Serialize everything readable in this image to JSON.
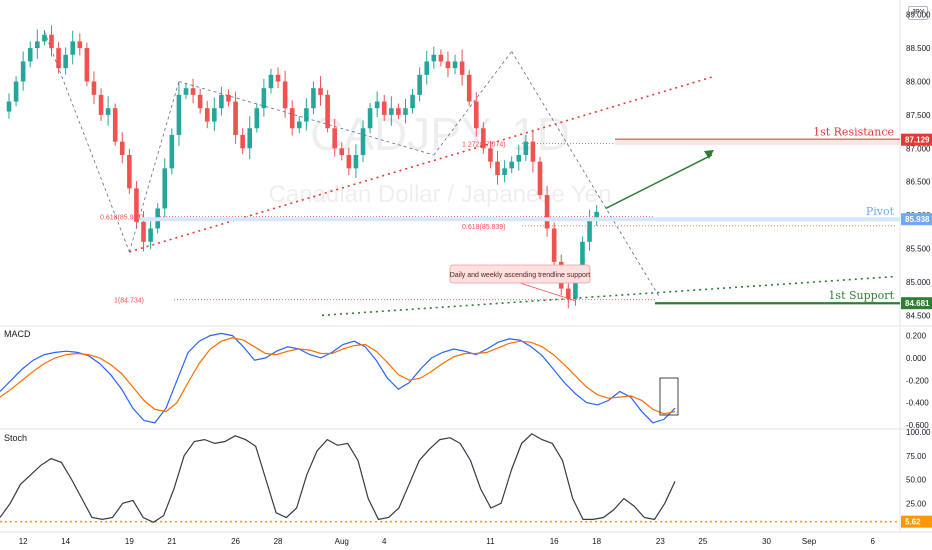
{
  "currency_badge": "JPY",
  "watermark": {
    "symbol": "CADJPY, 1D",
    "name": "Canadian Dollar / Japanese Yen"
  },
  "chart_data": [
    {
      "type": "candlestick",
      "ylim": [
        84.4,
        89.1
      ],
      "y_ticks": [
        "89.000",
        "88.500",
        "88.000",
        "87.500",
        "87.000",
        "86.500",
        "86.000",
        "85.500",
        "85.000",
        "84.500"
      ],
      "x_ticks": [
        {
          "label": "12",
          "i": 2
        },
        {
          "label": "14",
          "i": 8
        },
        {
          "label": "19",
          "i": 17
        },
        {
          "label": "21",
          "i": 23
        },
        {
          "label": "26",
          "i": 32
        },
        {
          "label": "28",
          "i": 38
        },
        {
          "label": "Aug",
          "i": 47
        },
        {
          "label": "4",
          "i": 53
        },
        {
          "label": "11",
          "i": 68
        },
        {
          "label": "16",
          "i": 77
        },
        {
          "label": "18",
          "i": 83
        },
        {
          "label": "23",
          "i": 92
        },
        {
          "label": "25",
          "i": 98
        },
        {
          "label": "30",
          "i": 107
        },
        {
          "label": "Sep",
          "i": 113
        },
        {
          "label": "6",
          "i": 122
        }
      ],
      "closes": [
        87.7,
        88.0,
        88.3,
        88.5,
        88.6,
        88.7,
        88.5,
        88.2,
        88.4,
        88.6,
        88.5,
        88.0,
        87.8,
        87.5,
        87.6,
        87.1,
        86.9,
        86.4,
        85.9,
        85.6,
        85.8,
        86.1,
        86.7,
        87.2,
        87.8,
        87.9,
        87.8,
        87.6,
        87.4,
        87.6,
        87.8,
        87.7,
        87.2,
        87.0,
        87.3,
        87.6,
        87.9,
        88.1,
        88.0,
        87.6,
        87.3,
        87.4,
        87.6,
        87.9,
        87.8,
        87.3,
        87.0,
        86.9,
        86.7,
        86.9,
        87.3,
        87.6,
        87.7,
        87.5,
        87.6,
        87.5,
        87.6,
        87.8,
        88.1,
        88.3,
        88.4,
        88.3,
        88.2,
        88.3,
        88.1,
        87.7,
        87.3,
        87.0,
        86.8,
        86.6,
        86.7,
        86.8,
        86.9,
        87.1,
        86.8,
        86.3,
        85.8,
        85.3,
        84.9,
        84.75,
        85.1,
        85.6,
        85.93,
        86.05
      ],
      "levels": [
        {
          "label": "1st Resistance",
          "value": 87.129,
          "tag": "87.129",
          "color": "#e53935"
        },
        {
          "label": "Pivot",
          "value": 85.938,
          "tag": "85.938",
          "color": "#6fa8f5"
        },
        {
          "label": "1st Support",
          "value": 84.681,
          "tag": "84.681",
          "color": "#2e7d32"
        }
      ],
      "fib_labels": [
        {
          "text": "0.618(85.981)",
          "value": 85.981
        },
        {
          "text": "1.272(87.074)",
          "value": 87.074
        },
        {
          "text": "0.618(85.839)",
          "value": 85.839
        },
        {
          "text": "1(84.734)",
          "value": 84.734
        }
      ],
      "annotation": "Daily and weekly ascending trendline support"
    },
    {
      "type": "line",
      "title": "MACD",
      "ylim": [
        -0.6,
        0.25
      ],
      "y_ticks": [
        "0.200",
        "0.000",
        "-0.200",
        "-0.400",
        "-0.600"
      ],
      "series": [
        {
          "color": "#2962ff",
          "values": [
            -0.3,
            -0.2,
            -0.1,
            -0.02,
            0.03,
            0.05,
            0.06,
            0.05,
            0.02,
            -0.05,
            -0.15,
            -0.28,
            -0.45,
            -0.56,
            -0.58,
            -0.45,
            -0.2,
            0.05,
            0.15,
            0.2,
            0.22,
            0.2,
            0.1,
            -0.02,
            0.0,
            0.06,
            0.1,
            0.08,
            0.03,
            0.0,
            0.05,
            0.12,
            0.15,
            0.1,
            -0.02,
            -0.18,
            -0.28,
            -0.22,
            -0.1,
            0.0,
            0.05,
            0.08,
            0.06,
            0.03,
            0.08,
            0.14,
            0.17,
            0.16,
            0.1,
            0.02,
            -0.1,
            -0.22,
            -0.32,
            -0.4,
            -0.42,
            -0.38,
            -0.3,
            -0.35,
            -0.48,
            -0.58,
            -0.55,
            -0.45
          ]
        },
        {
          "color": "#ff6d00",
          "values": [
            -0.35,
            -0.28,
            -0.2,
            -0.12,
            -0.05,
            0.0,
            0.03,
            0.04,
            0.03,
            0.0,
            -0.06,
            -0.14,
            -0.26,
            -0.38,
            -0.46,
            -0.48,
            -0.4,
            -0.22,
            -0.05,
            0.08,
            0.15,
            0.18,
            0.16,
            0.1,
            0.04,
            0.03,
            0.06,
            0.08,
            0.07,
            0.04,
            0.04,
            0.08,
            0.11,
            0.12,
            0.06,
            -0.04,
            -0.15,
            -0.2,
            -0.18,
            -0.12,
            -0.05,
            0.01,
            0.04,
            0.04,
            0.05,
            0.09,
            0.13,
            0.15,
            0.14,
            0.1,
            0.03,
            -0.06,
            -0.16,
            -0.26,
            -0.33,
            -0.36,
            -0.35,
            -0.34,
            -0.38,
            -0.46,
            -0.5,
            -0.48
          ]
        }
      ]
    },
    {
      "type": "line",
      "title": "Stoch",
      "ylim": [
        0,
        100
      ],
      "y_ticks": [
        "100.00",
        "75.00",
        "50.00",
        "25.00",
        "5.62"
      ],
      "reference": {
        "value": 5.62,
        "color": "#ff9800"
      },
      "series": [
        {
          "color": "#363a45",
          "values": [
            10,
            25,
            45,
            55,
            65,
            72,
            68,
            50,
            30,
            10,
            8,
            10,
            25,
            28,
            10,
            5,
            12,
            40,
            75,
            90,
            92,
            88,
            90,
            96,
            92,
            85,
            50,
            15,
            10,
            20,
            55,
            80,
            92,
            86,
            88,
            70,
            30,
            8,
            10,
            20,
            45,
            70,
            82,
            92,
            94,
            88,
            70,
            40,
            20,
            25,
            60,
            88,
            98,
            92,
            88,
            70,
            30,
            8,
            8,
            10,
            18,
            30,
            22,
            10,
            8,
            25,
            48
          ]
        }
      ]
    }
  ]
}
